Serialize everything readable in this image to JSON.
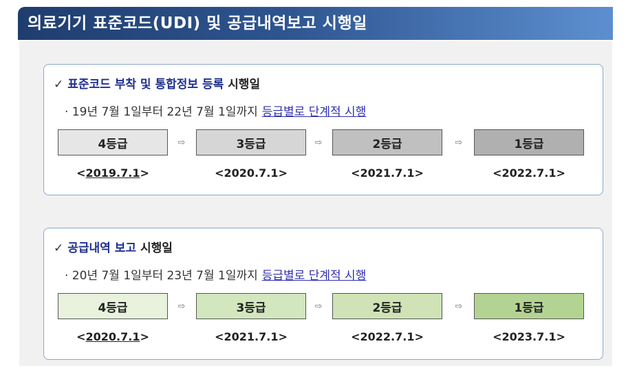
{
  "title": "의료기기 표준코드(UDI) 및 공급내역보고 시행일",
  "section1": {
    "check": "✓",
    "heading_highlight": "표준코드 부착 및 통합정보 등록",
    "heading_rest": "시행일",
    "sub_prefix": "· 19년 7월 1일부터 22년 7월 1일까지",
    "sub_link": "등급별로 단계적 시행",
    "steps": [
      "4등급",
      "3등급",
      "2등급",
      "1등급"
    ],
    "dates": [
      "<2019.7.1>",
      "<2020.7.1>",
      "<2021.7.1>",
      "<2022.7.1>"
    ],
    "step_colors": [
      "#e6e6e6",
      "#d6d6d6",
      "#c0c0c0",
      "#b0b0b0"
    ]
  },
  "section2": {
    "check": "✓",
    "heading_highlight": "공급내역 보고",
    "heading_rest": "시행일",
    "sub_prefix": "· 20년 7월 1일부터 23년 7월 1일까지",
    "sub_link": "등급별로 단계적 시행",
    "steps": [
      "4등급",
      "3등급",
      "2등급",
      "1등급"
    ],
    "dates": [
      "<2020.7.1>",
      "<2021.7.1>",
      "<2022.7.1>",
      "<2023.7.1>"
    ],
    "step_colors": [
      "#e8f2dc",
      "#d3e7be",
      "#cfe3b6",
      "#b3d393"
    ]
  },
  "arrow_glyph": "⇨"
}
